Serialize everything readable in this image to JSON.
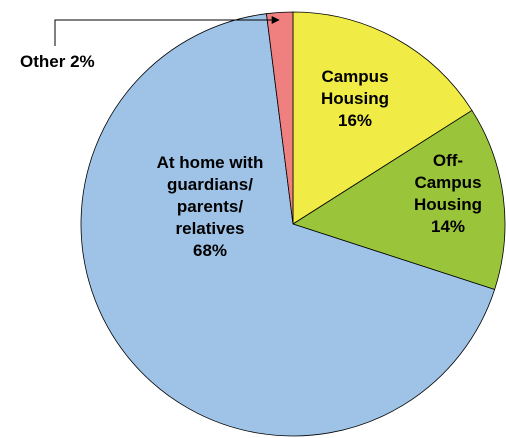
{
  "chart_data": {
    "type": "pie",
    "categories": [
      "Campus Housing",
      "Off-Campus Housing",
      "At home with guardians/ parents/ relatives",
      "Other"
    ],
    "values": [
      16,
      14,
      68,
      2
    ],
    "value_labels": [
      "16%",
      "14%",
      "68%",
      "2%"
    ],
    "colors": [
      "#f0ec45",
      "#9ac43a",
      "#9fc3e7",
      "#f08080"
    ]
  }
}
